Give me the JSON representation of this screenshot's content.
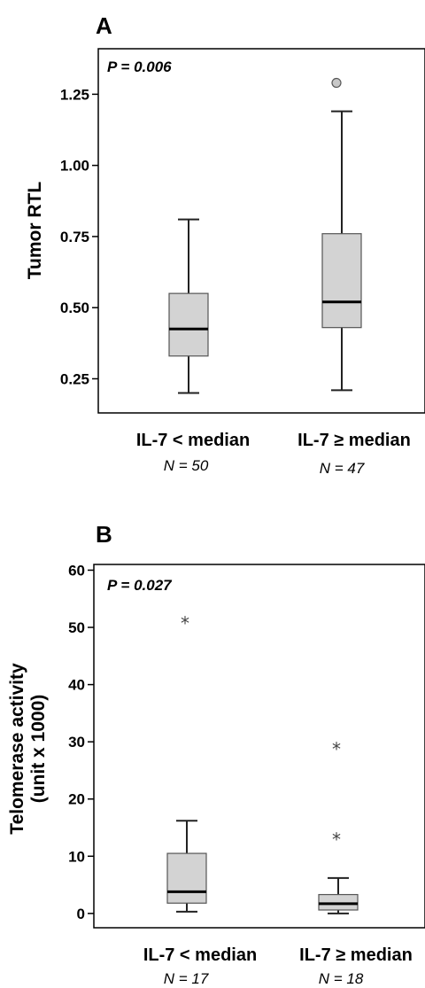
{
  "chart_data": [
    {
      "panel": "A",
      "type": "box",
      "pvalue": "P = 0.006",
      "ylabel": "Tumor RTL",
      "ylim": [
        0.13,
        1.41
      ],
      "yticks": [
        0.25,
        0.5,
        0.75,
        1.0,
        1.25
      ],
      "ytick_labels": [
        "0.25",
        "0.50",
        "0.75",
        "1.00",
        "1.25"
      ],
      "categories": [
        "IL-7 < median",
        "IL-7 ≥ median"
      ],
      "n_labels": [
        "N = 50",
        "N = 47"
      ],
      "boxes": [
        {
          "whisker_low": 0.2,
          "q1": 0.33,
          "median": 0.425,
          "q3": 0.55,
          "whisker_high": 0.81,
          "outliers": []
        },
        {
          "whisker_low": 0.21,
          "q1": 0.43,
          "median": 0.52,
          "q3": 0.76,
          "whisker_high": 1.19,
          "outliers": [
            {
              "value": 1.29,
              "marker": "circle"
            }
          ]
        }
      ],
      "box_color": "#d3d3d3"
    },
    {
      "panel": "B",
      "type": "box",
      "pvalue": "P = 0.027",
      "ylabel_lines": [
        "Telomerase activity",
        "(unit x 1000)"
      ],
      "ylim": [
        -2.5,
        61
      ],
      "yticks": [
        0,
        10,
        20,
        30,
        40,
        50,
        60
      ],
      "ytick_labels": [
        "0",
        "10",
        "20",
        "30",
        "40",
        "50",
        "60"
      ],
      "categories": [
        "IL-7 < median",
        "IL-7 ≥ median"
      ],
      "n_labels": [
        "N = 17",
        "N = 18"
      ],
      "boxes": [
        {
          "whisker_low": 0.3,
          "q1": 1.8,
          "median": 3.8,
          "q3": 10.5,
          "whisker_high": 16.2,
          "outliers": [
            {
              "value": 51,
              "marker": "star"
            }
          ]
        },
        {
          "whisker_low": 0.0,
          "q1": 0.6,
          "median": 1.7,
          "q3": 3.3,
          "whisker_high": 6.2,
          "outliers": [
            {
              "value": 29,
              "marker": "star"
            },
            {
              "value": 13.2,
              "marker": "star"
            }
          ]
        }
      ],
      "box_color": "#d3d3d3"
    }
  ]
}
